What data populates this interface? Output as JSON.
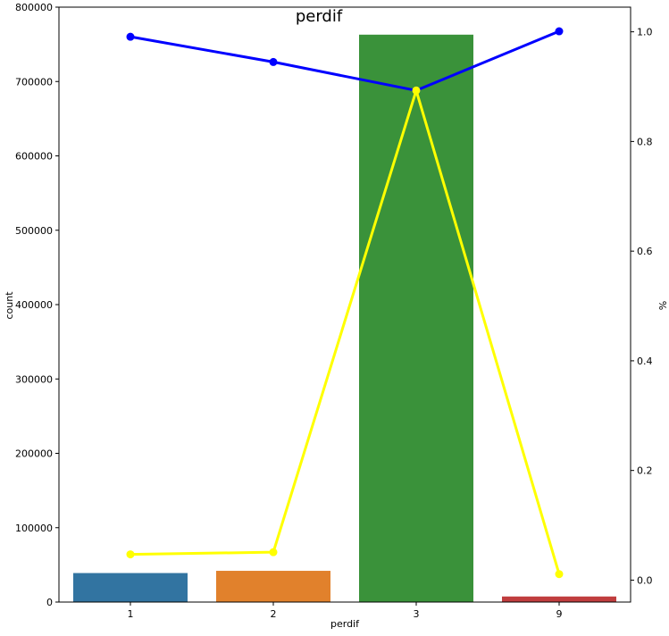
{
  "chart_data": {
    "type": "bar",
    "title": "perdif",
    "xlabel": "perdif",
    "ylabel": "count",
    "y2label": "%",
    "categories": [
      "1",
      "2",
      "3",
      "9"
    ],
    "ylim": [
      0,
      800000
    ],
    "y2lim": [
      -0.04,
      1.045
    ],
    "yticks": [
      "0",
      "100000",
      "200000",
      "300000",
      "400000",
      "500000",
      "600000",
      "700000",
      "800000"
    ],
    "y2ticks": [
      "0.0",
      "0.2",
      "0.4",
      "0.6",
      "0.8",
      "1.0"
    ],
    "bars": {
      "values": [
        39000,
        42000,
        763000,
        7500
      ],
      "colors": [
        "#3274a1",
        "#e1812c",
        "#3a923a",
        "#c03d3e"
      ]
    },
    "series": [
      {
        "color": "#0000ff",
        "values": [
          0.991,
          0.945,
          0.893,
          1.001
        ]
      },
      {
        "color": "#ffff00",
        "values": [
          0.047,
          0.051,
          0.893,
          0.011
        ]
      }
    ],
    "grid": false
  }
}
